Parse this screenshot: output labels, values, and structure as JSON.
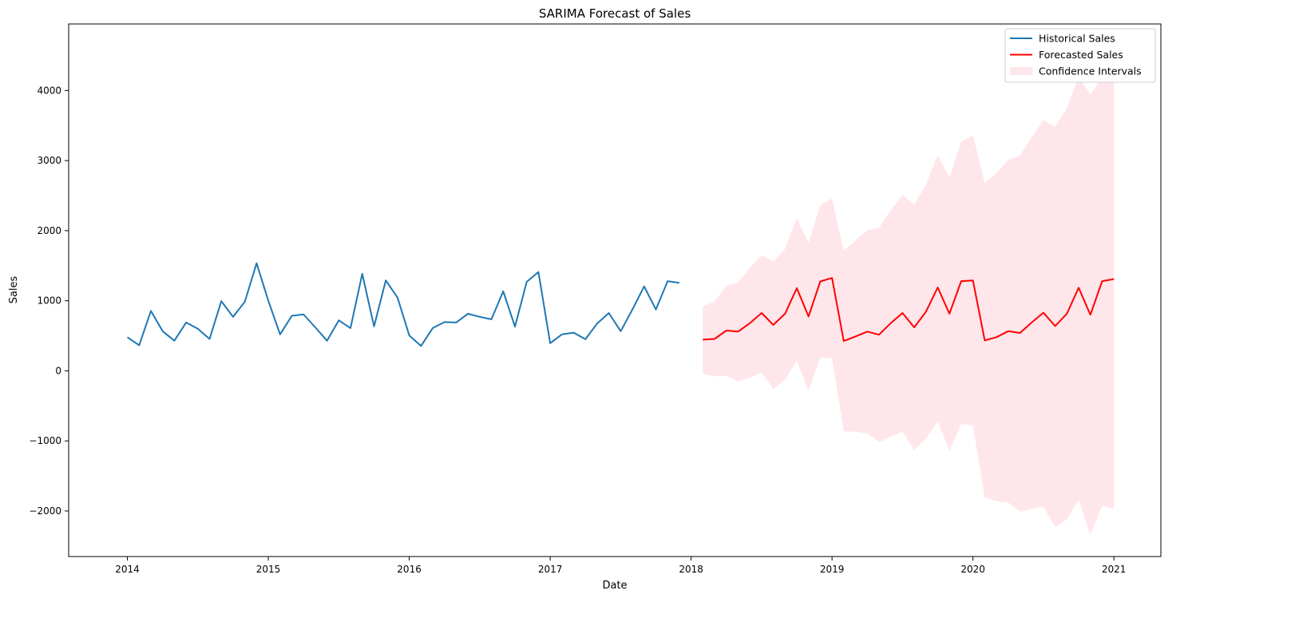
{
  "chart_data": {
    "type": "line",
    "title": "SARIMA Forecast of Sales",
    "xlabel": "Date",
    "ylabel": "Sales",
    "xlim": [
      "2013-08",
      "2021-05"
    ],
    "ylim": [
      -2650,
      4950
    ],
    "x_ticks": [
      "2014",
      "2015",
      "2016",
      "2017",
      "2018",
      "2019",
      "2020",
      "2021"
    ],
    "y_ticks": [
      -2000,
      -1000,
      0,
      1000,
      2000,
      3000,
      4000
    ],
    "y_tick_labels": [
      "−2000",
      "−1000",
      "0",
      "1000",
      "2000",
      "3000",
      "4000"
    ],
    "grid": false,
    "legend_position": "top-right",
    "colors": {
      "historical": "#1f77b4",
      "forecast": "#ff0000",
      "confidence": "#ffc0cb"
    },
    "series": [
      {
        "name": "Historical Sales",
        "start": "2014-01",
        "values": [
          480,
          365,
          855,
          565,
          430,
          690,
          600,
          455,
          995,
          770,
          985,
          1535,
          1000,
          520,
          785,
          805,
          620,
          430,
          720,
          610,
          1385,
          635,
          1290,
          1045,
          505,
          355,
          610,
          695,
          690,
          815,
          770,
          735,
          1135,
          630,
          1270,
          1410,
          395,
          520,
          545,
          450,
          675,
          825,
          565,
          875,
          1205,
          875,
          1280,
          1255
        ]
      },
      {
        "name": "Forecasted Sales",
        "start": "2018-02",
        "values": [
          445,
          455,
          575,
          560,
          680,
          825,
          655,
          815,
          1180,
          775,
          1275,
          1325,
          425,
          490,
          560,
          515,
          680,
          825,
          620,
          845,
          1190,
          815,
          1280,
          1290,
          435,
          480,
          565,
          540,
          690,
          830,
          640,
          815,
          1185,
          800,
          1280,
          1310
        ]
      }
    ],
    "confidence_interval": {
      "name": "Confidence Intervals",
      "start": "2018-02",
      "upper": [
        920,
        990,
        1210,
        1260,
        1470,
        1650,
        1560,
        1740,
        2180,
        1830,
        2360,
        2460,
        1710,
        1860,
        2010,
        2040,
        2290,
        2510,
        2370,
        2660,
        3080,
        2760,
        3270,
        3360,
        2680,
        2820,
        3010,
        3070,
        3330,
        3580,
        3480,
        3750,
        4200,
        3940,
        4200,
        4200
      ],
      "lower": [
        -40,
        -80,
        -70,
        -150,
        -100,
        -20,
        -260,
        -130,
        150,
        -290,
        190,
        180,
        -860,
        -870,
        -890,
        -1020,
        -940,
        -870,
        -1130,
        -970,
        -720,
        -1140,
        -760,
        -780,
        -1810,
        -1860,
        -1880,
        -2010,
        -1970,
        -1940,
        -2230,
        -2120,
        -1840,
        -2340,
        -1920,
        -1970
      ]
    }
  }
}
